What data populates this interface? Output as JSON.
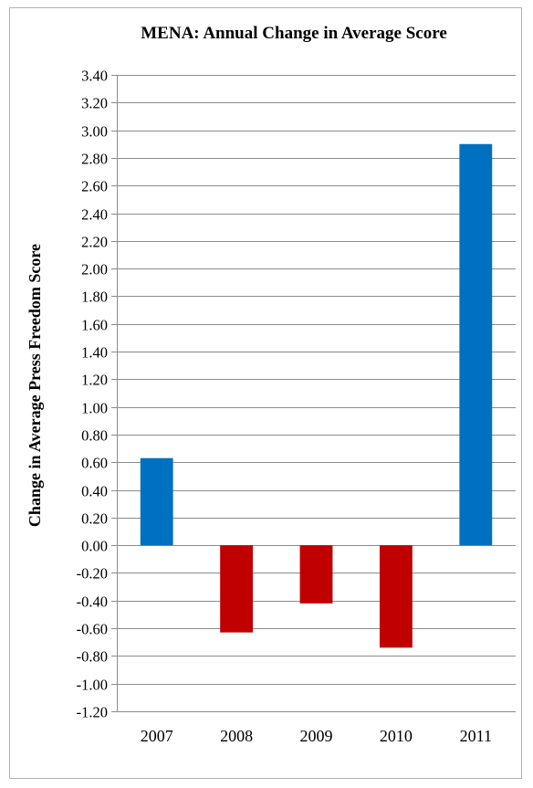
{
  "chart_data": {
    "type": "bar",
    "title": "MENA: Annual Change in Average Score",
    "xlabel": "",
    "ylabel": "Change in Average Press Freedom Score",
    "categories": [
      "2007",
      "2008",
      "2009",
      "2010",
      "2011"
    ],
    "values": [
      0.63,
      -0.63,
      -0.42,
      -0.74,
      2.9
    ],
    "ylim": [
      -1.2,
      3.4
    ],
    "ytick_step": 0.2,
    "yticks": [
      "-1.20",
      "-1.00",
      "-0.80",
      "-0.60",
      "-0.40",
      "-0.20",
      "0.00",
      "0.20",
      "0.40",
      "0.60",
      "0.80",
      "1.00",
      "1.20",
      "1.40",
      "1.60",
      "1.80",
      "2.00",
      "2.20",
      "2.40",
      "2.60",
      "2.80",
      "3.00",
      "3.20",
      "3.40"
    ],
    "grid": true,
    "legend": "none",
    "colors": {
      "positive": "#0070c0",
      "negative": "#c00000",
      "grid": "#8c8c8c",
      "axis": "#8c8c8c"
    }
  }
}
